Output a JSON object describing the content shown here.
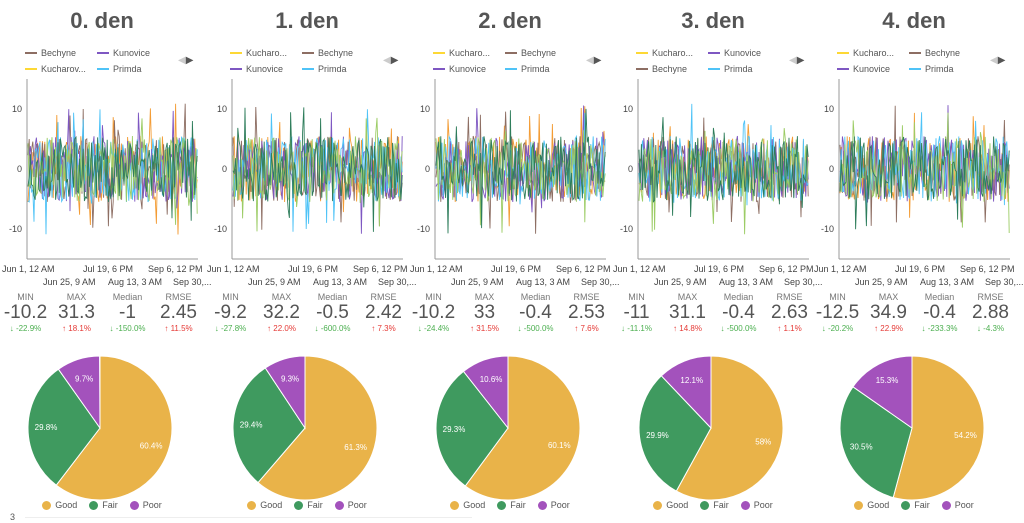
{
  "series_colors": {
    "Bechyne": "#8d6e63",
    "Kunovice": "#7e57c2",
    "Kucharov...": "#fdd835",
    "Kucharo...": "#fdd835",
    "Primda": "#4fc3f7"
  },
  "pie_colors": {
    "Good": "#e9b349",
    "Fair": "#3f9a5f",
    "Poor": "#a352bc"
  },
  "metric_labels": [
    "MIN",
    "MAX",
    "Median",
    "RMSE"
  ],
  "y_ticks": [
    "10",
    "0",
    "-10"
  ],
  "x_ticks_top": [
    "Jun 1, 12 AM",
    "Jul 19, 6 PM",
    "Sep 6, 12 PM"
  ],
  "x_ticks_bottom": [
    "Jun 25, 9 AM",
    "Aug 13, 3 AM",
    "Sep 30,..."
  ],
  "pie_legend": [
    "Good",
    "Fair",
    "Poor"
  ],
  "footer": {
    "axis_value": "3"
  },
  "panels": [
    {
      "title": "0. den",
      "legend": [
        "Bechyne",
        "Kunovice",
        "Kucharov...",
        "Primda"
      ],
      "metrics": [
        {
          "v": "-10.2",
          "d": "-22.9%",
          "dir": "down"
        },
        {
          "v": "31.3",
          "d": "18.1%",
          "dir": "up"
        },
        {
          "v": "-1",
          "d": "-150.0%",
          "dir": "down"
        },
        {
          "v": "2.45",
          "d": "11.5%",
          "dir": "up"
        }
      ],
      "pie": [
        {
          "label": "Good",
          "value": 60.4,
          "text": "60.4%"
        },
        {
          "label": "Fair",
          "value": 29.8,
          "text": "29.8%"
        },
        {
          "label": "Poor",
          "value": 9.7,
          "text": "9.7%"
        }
      ]
    },
    {
      "title": "1. den",
      "legend": [
        "Kucharo...",
        "Bechyne",
        "Kunovice",
        "Primda"
      ],
      "metrics": [
        {
          "v": "-9.2",
          "d": "-27.8%",
          "dir": "down"
        },
        {
          "v": "32.2",
          "d": "22.0%",
          "dir": "up"
        },
        {
          "v": "-0.5",
          "d": "-600.0%",
          "dir": "down"
        },
        {
          "v": "2.42",
          "d": "7.3%",
          "dir": "up"
        }
      ],
      "pie": [
        {
          "label": "Good",
          "value": 61.3,
          "text": "61.3%"
        },
        {
          "label": "Fair",
          "value": 29.4,
          "text": "29.4%"
        },
        {
          "label": "Poor",
          "value": 9.3,
          "text": "9.3%"
        }
      ]
    },
    {
      "title": "2. den",
      "legend": [
        "Kucharo...",
        "Bechyne",
        "Kunovice",
        "Primda"
      ],
      "metrics": [
        {
          "v": "-10.2",
          "d": "-24.4%",
          "dir": "down"
        },
        {
          "v": "33",
          "d": "31.5%",
          "dir": "up"
        },
        {
          "v": "-0.4",
          "d": "-500.0%",
          "dir": "down"
        },
        {
          "v": "2.53",
          "d": "7.6%",
          "dir": "up"
        }
      ],
      "pie": [
        {
          "label": "Good",
          "value": 60.1,
          "text": "60.1%"
        },
        {
          "label": "Fair",
          "value": 29.3,
          "text": "29.3%"
        },
        {
          "label": "Poor",
          "value": 10.6,
          "text": "10.6%"
        }
      ]
    },
    {
      "title": "3. den",
      "legend": [
        "Kucharo...",
        "Kunovice",
        "Bechyne",
        "Primda"
      ],
      "metrics": [
        {
          "v": "-11",
          "d": "-11.1%",
          "dir": "down"
        },
        {
          "v": "31.1",
          "d": "14.8%",
          "dir": "up"
        },
        {
          "v": "-0.4",
          "d": "-500.0%",
          "dir": "down"
        },
        {
          "v": "2.63",
          "d": "1.1%",
          "dir": "up"
        }
      ],
      "pie": [
        {
          "label": "Good",
          "value": 58,
          "text": "58%"
        },
        {
          "label": "Fair",
          "value": 29.9,
          "text": "29.9%"
        },
        {
          "label": "Poor",
          "value": 12.1,
          "text": "12.1%"
        }
      ]
    },
    {
      "title": "4. den",
      "legend": [
        "Kucharo...",
        "Bechyne",
        "Kunovice",
        "Primda"
      ],
      "metrics": [
        {
          "v": "-12.5",
          "d": "-20.2%",
          "dir": "down"
        },
        {
          "v": "34.9",
          "d": "22.9%",
          "dir": "up"
        },
        {
          "v": "-0.4",
          "d": "-233.3%",
          "dir": "down"
        },
        {
          "v": "2.88",
          "d": "-4.3%",
          "dir": "down"
        }
      ],
      "pie": [
        {
          "label": "Good",
          "value": 54.2,
          "text": "54.2%"
        },
        {
          "label": "Fair",
          "value": 30.5,
          "text": "30.5%"
        },
        {
          "label": "Poor",
          "value": 15.3,
          "text": "15.3%"
        }
      ]
    }
  ]
}
